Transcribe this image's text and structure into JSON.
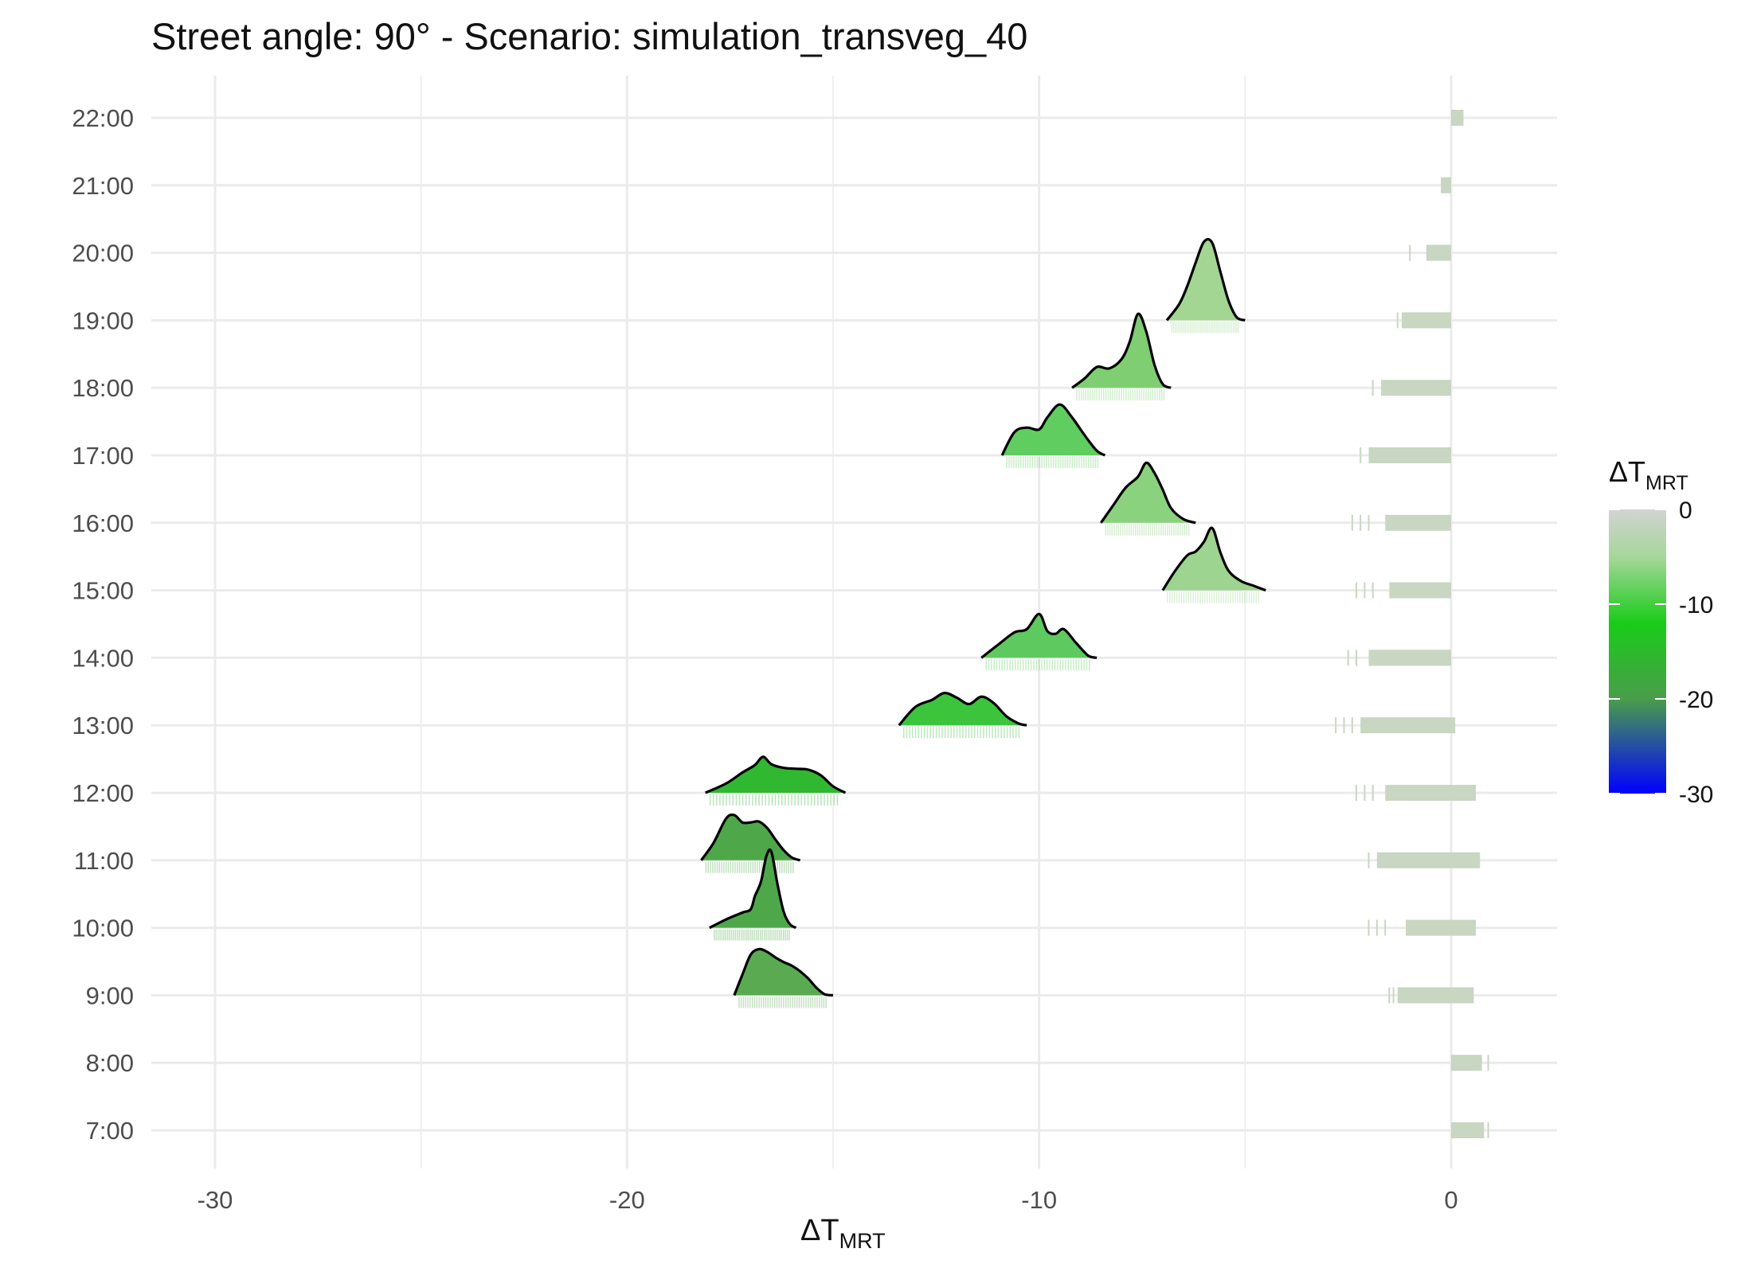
{
  "chart_data": {
    "type": "ridgeline",
    "title": "Street angle: 90° - Scenario: simulation_transveg_40",
    "xlabel": "ΔT",
    "xlabel_sub": "MRT",
    "ylabel": "",
    "xlim": [
      -31.5,
      2.5
    ],
    "xticks": [
      -30,
      -20,
      -10,
      0
    ],
    "xtick_labels": [
      "-30",
      "-20",
      "-10",
      "0"
    ],
    "categories": [
      "7:00",
      "8:00",
      "9:00",
      "10:00",
      "11:00",
      "12:00",
      "13:00",
      "14:00",
      "15:00",
      "16:00",
      "17:00",
      "18:00",
      "19:00",
      "20:00",
      "21:00",
      "22:00"
    ],
    "grid": true,
    "legend": {
      "title": "ΔT",
      "title_sub": "MRT",
      "position": "right",
      "range": [
        -30,
        0
      ],
      "ticks": [
        0,
        -10,
        -20,
        -30
      ],
      "tick_labels": [
        "0",
        "-10",
        "-20",
        "-30"
      ],
      "colors": [
        "#0000ff",
        "#4a9d4a",
        "#19cc19",
        "#a6d69b",
        "#d3d3d3"
      ],
      "stops": [
        -30,
        -20,
        -12,
        -5,
        0
      ]
    },
    "rug_color": "#c8d6c2",
    "series": [
      {
        "name": "7:00",
        "hour": 7,
        "ridge": null,
        "rug_dense": [
          0,
          0.8
        ],
        "rug_sparse": [
          0.9
        ]
      },
      {
        "name": "8:00",
        "hour": 8,
        "ridge": null,
        "rug_dense": [
          0,
          0.75
        ],
        "rug_sparse": [
          0.9
        ]
      },
      {
        "name": "9:00",
        "hour": 9,
        "ridge": {
          "x": [
            -17.4,
            -17.2,
            -17.0,
            -16.8,
            -16.6,
            -16.4,
            -16.2,
            -16.0,
            -15.8,
            -15.6,
            -15.4,
            -15.2,
            -15.0
          ],
          "density": [
            0.0,
            0.45,
            0.88,
            1.0,
            0.94,
            0.82,
            0.72,
            0.64,
            0.52,
            0.36,
            0.16,
            0.02,
            0.0
          ],
          "color": "#5aaa52"
        },
        "rug_dense": [
          -1.3,
          0.55
        ],
        "rug_sparse": [
          -1.5,
          -1.4
        ]
      },
      {
        "name": "10:00",
        "hour": 10,
        "ridge": {
          "x": [
            -18.0,
            -17.6,
            -17.2,
            -17.0,
            -16.9,
            -16.75,
            -16.62,
            -16.5,
            -16.35,
            -16.2,
            -16.05,
            -15.9
          ],
          "density": [
            0.0,
            0.18,
            0.33,
            0.4,
            0.68,
            1.0,
            1.55,
            1.65,
            0.95,
            0.35,
            0.08,
            0.0
          ],
          "color": "#4ea84a"
        },
        "rug_dense": [
          -1.1,
          0.6
        ],
        "rug_sparse": [
          -2.0,
          -1.8,
          -1.6
        ]
      },
      {
        "name": "11:00",
        "hour": 11,
        "ridge": {
          "x": [
            -18.2,
            -17.9,
            -17.6,
            -17.4,
            -17.2,
            -17.0,
            -16.8,
            -16.6,
            -16.4,
            -16.2,
            -16.0,
            -15.8
          ],
          "density": [
            0.0,
            0.38,
            0.9,
            0.98,
            0.82,
            0.82,
            0.84,
            0.7,
            0.45,
            0.22,
            0.06,
            0.0
          ],
          "color": "#4ea84a"
        },
        "rug_dense": [
          -1.8,
          0.7
        ],
        "rug_sparse": [
          -2.0
        ]
      },
      {
        "name": "12:00",
        "hour": 12,
        "ridge": {
          "x": [
            -18.1,
            -17.6,
            -17.2,
            -16.9,
            -16.7,
            -16.5,
            -16.2,
            -15.9,
            -15.6,
            -15.3,
            -15.0,
            -14.7
          ],
          "density": [
            0.0,
            0.2,
            0.44,
            0.6,
            0.78,
            0.62,
            0.54,
            0.52,
            0.5,
            0.38,
            0.14,
            0.0
          ],
          "color": "#30b830"
        },
        "rug_dense": [
          -1.6,
          0.6
        ],
        "rug_sparse": [
          -2.3,
          -2.1,
          -1.9
        ]
      },
      {
        "name": "13:00",
        "hour": 13,
        "ridge": {
          "x": [
            -13.4,
            -13.0,
            -12.6,
            -12.3,
            -12.0,
            -11.7,
            -11.4,
            -11.1,
            -10.8,
            -10.5,
            -10.3
          ],
          "density": [
            0.0,
            0.4,
            0.55,
            0.7,
            0.6,
            0.46,
            0.62,
            0.48,
            0.2,
            0.04,
            0.0
          ],
          "color": "#3cc43c"
        },
        "rug_dense": [
          -2.2,
          0.1
        ],
        "rug_sparse": [
          -2.8,
          -2.6,
          -2.4
        ]
      },
      {
        "name": "14:00",
        "hour": 14,
        "ridge": {
          "x": [
            -11.4,
            -11.0,
            -10.6,
            -10.3,
            -10.0,
            -9.8,
            -9.6,
            -9.4,
            -9.1,
            -8.8,
            -8.6
          ],
          "density": [
            0.0,
            0.28,
            0.55,
            0.62,
            0.95,
            0.58,
            0.52,
            0.62,
            0.32,
            0.04,
            0.0
          ],
          "color": "#5ec95e"
        },
        "rug_dense": [
          -2.0,
          0.0
        ],
        "rug_sparse": [
          -2.5,
          -2.3
        ]
      },
      {
        "name": "15:00",
        "hour": 15,
        "ridge": {
          "x": [
            -7.0,
            -6.7,
            -6.4,
            -6.2,
            -6.0,
            -5.8,
            -5.6,
            -5.4,
            -5.1,
            -4.8,
            -4.5
          ],
          "density": [
            0.0,
            0.42,
            0.76,
            0.84,
            1.05,
            1.35,
            0.82,
            0.42,
            0.2,
            0.1,
            0.0
          ],
          "color": "#9dd48f"
        },
        "rug_dense": [
          -1.5,
          0.0
        ],
        "rug_sparse": [
          -2.3,
          -2.1,
          -1.9
        ]
      },
      {
        "name": "16:00",
        "hour": 16,
        "ridge": {
          "x": [
            -8.5,
            -8.2,
            -7.9,
            -7.6,
            -7.4,
            -7.2,
            -7.0,
            -6.8,
            -6.5,
            -6.2
          ],
          "density": [
            0.0,
            0.38,
            0.76,
            1.0,
            1.3,
            1.08,
            0.72,
            0.32,
            0.08,
            0.0
          ],
          "color": "#8bd27e"
        },
        "rug_dense": [
          -1.6,
          0.0
        ],
        "rug_sparse": [
          -2.4,
          -2.2,
          -2.0
        ]
      },
      {
        "name": "17:00",
        "hour": 17,
        "ridge": {
          "x": [
            -10.9,
            -10.6,
            -10.3,
            -10.0,
            -9.8,
            -9.5,
            -9.2,
            -8.9,
            -8.6,
            -8.4
          ],
          "density": [
            0.0,
            0.5,
            0.6,
            0.56,
            0.82,
            1.1,
            0.82,
            0.44,
            0.1,
            0.0
          ],
          "color": "#5fcd5f"
        },
        "rug_dense": [
          -2.0,
          0.0
        ],
        "rug_sparse": [
          -2.2
        ]
      },
      {
        "name": "18:00",
        "hour": 18,
        "ridge": {
          "x": [
            -9.2,
            -8.9,
            -8.6,
            -8.3,
            -8.0,
            -7.8,
            -7.6,
            -7.4,
            -7.2,
            -7.0,
            -6.8
          ],
          "density": [
            0.0,
            0.2,
            0.45,
            0.42,
            0.62,
            1.0,
            1.6,
            1.22,
            0.5,
            0.08,
            0.0
          ],
          "color": "#7fce72"
        },
        "rug_dense": [
          -1.7,
          0.0
        ],
        "rug_sparse": [
          -1.9
        ]
      },
      {
        "name": "19:00",
        "hour": 19,
        "ridge": {
          "x": [
            -6.9,
            -6.6,
            -6.4,
            -6.2,
            -6.0,
            -5.8,
            -5.6,
            -5.4,
            -5.2,
            -5.0
          ],
          "density": [
            0.0,
            0.35,
            0.75,
            1.25,
            1.7,
            1.68,
            1.05,
            0.42,
            0.06,
            0.0
          ],
          "color": "#a2d692"
        },
        "rug_dense": [
          -1.2,
          0.0
        ],
        "rug_sparse": [
          -1.3
        ]
      },
      {
        "name": "20:00",
        "hour": 20,
        "ridge": null,
        "rug_dense": [
          -0.6,
          0.0
        ],
        "rug_sparse": [
          -1.0
        ]
      },
      {
        "name": "21:00",
        "hour": 21,
        "ridge": null,
        "rug_dense": [
          -0.25,
          0.0
        ],
        "rug_sparse": []
      },
      {
        "name": "22:00",
        "hour": 22,
        "ridge": null,
        "rug_dense": [
          0.0,
          0.3
        ],
        "rug_sparse": []
      }
    ]
  }
}
